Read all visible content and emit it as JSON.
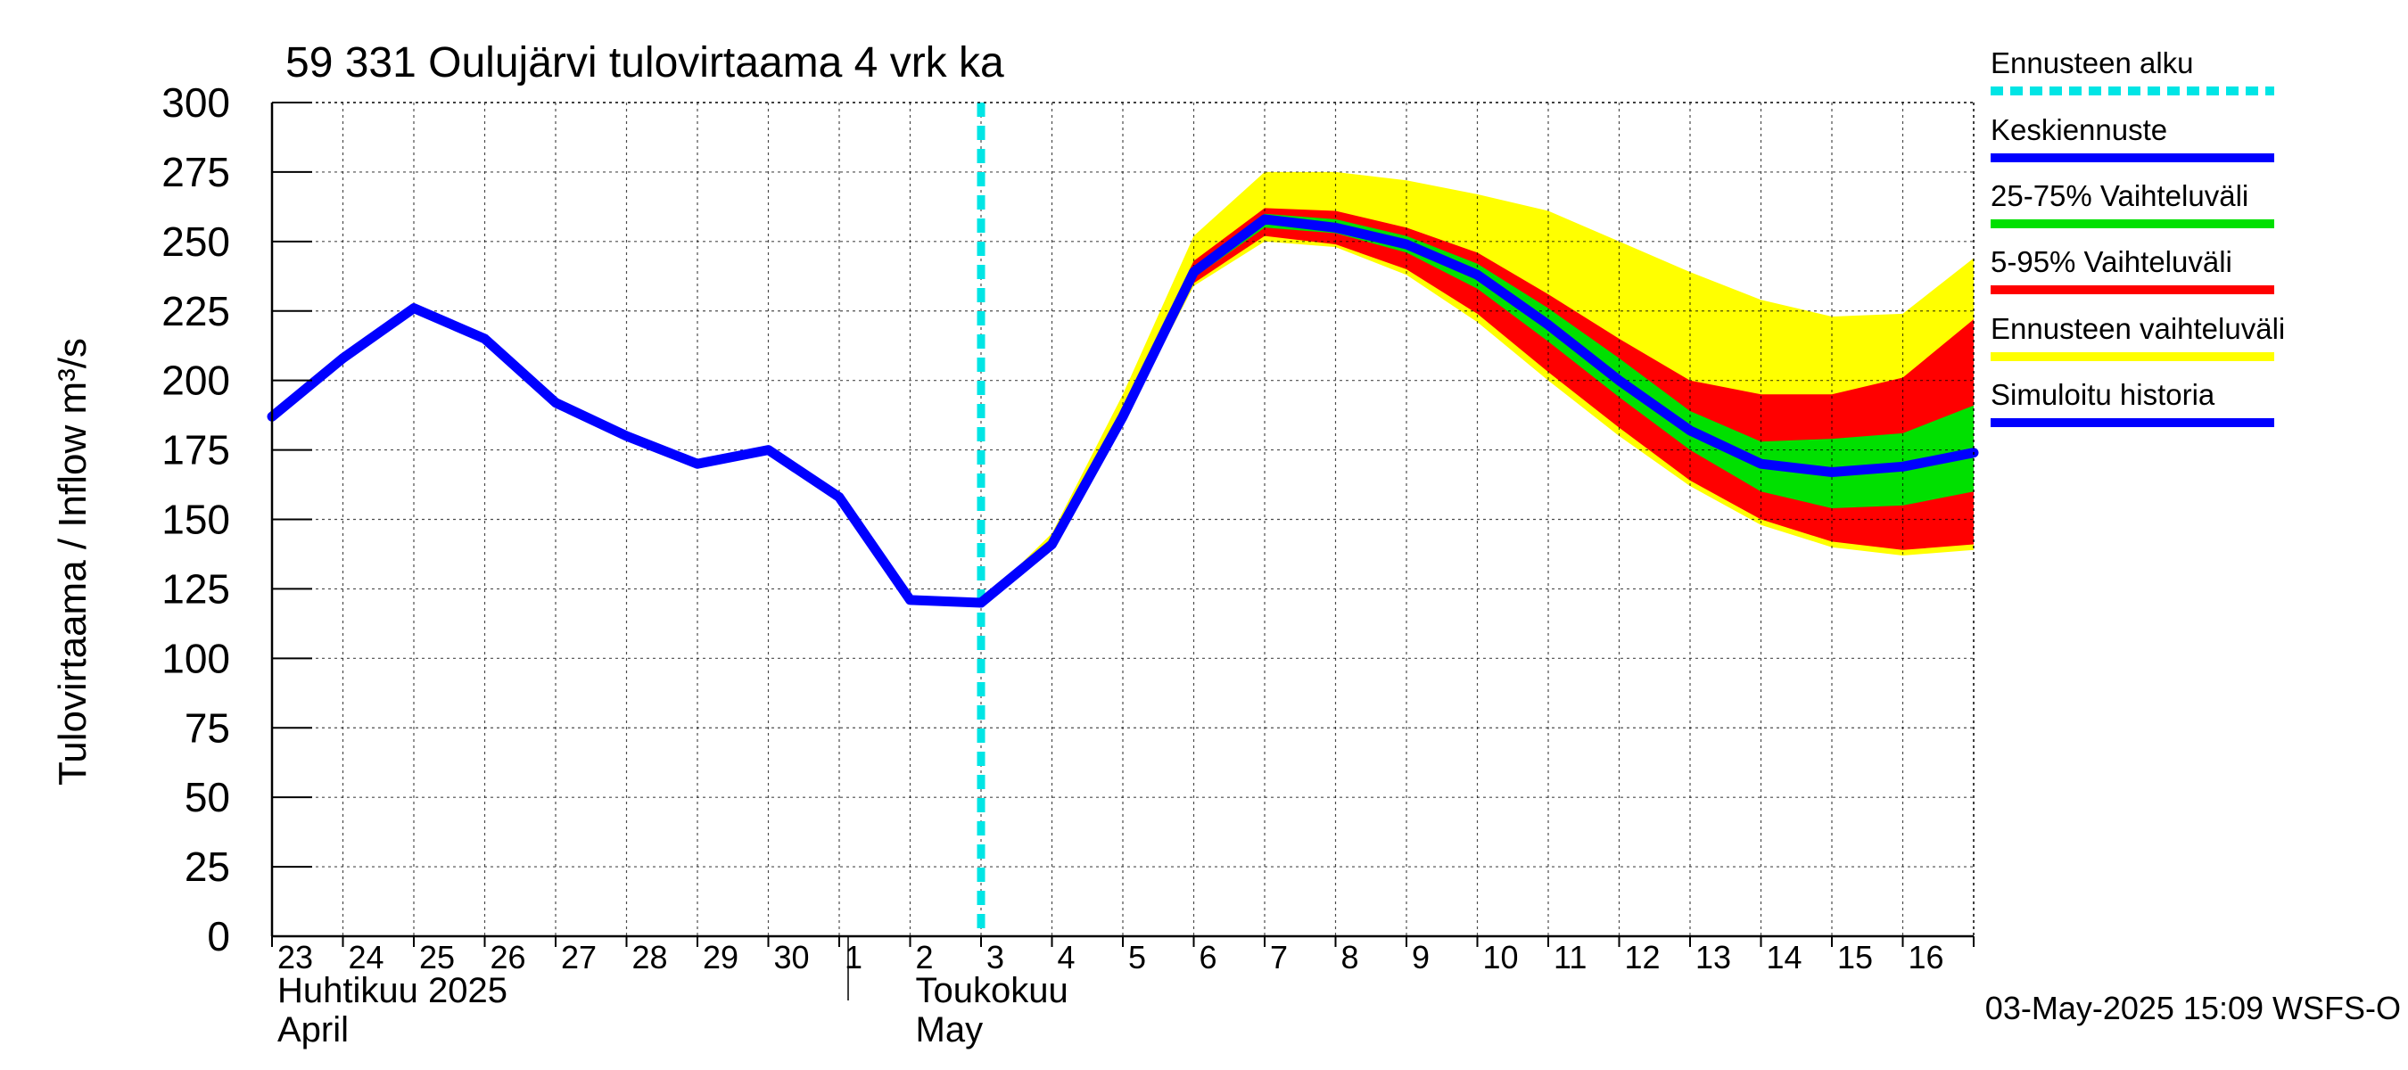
{
  "chart_data": {
    "type": "line",
    "title": "59 331 Oulujärvi tulovirtaama 4 vrk ka",
    "ylabel": "Tulovirtaama / Inflow    m³/s",
    "ylim": [
      0,
      300
    ],
    "yticks": [
      "0",
      "25",
      "50",
      "75",
      "100",
      "125",
      "150",
      "175",
      "200",
      "225",
      "250",
      "275",
      "300"
    ],
    "xlim": [
      0,
      24.0
    ],
    "x_tick_labels": [
      "23",
      "24",
      "25",
      "26",
      "27",
      "28",
      "29",
      "30",
      "1",
      "2",
      "3",
      "4",
      "5",
      "6",
      "7",
      "8",
      "9",
      "10",
      "11",
      "12",
      "13",
      "14",
      "15",
      "16"
    ],
    "month_labels": [
      {
        "line1": "Huhtikuu  2025",
        "line2": "April",
        "day_index": 0
      },
      {
        "line1": "Toukokuu",
        "line2": "May",
        "day_index": 9
      }
    ],
    "forecast_start_x": 10.0,
    "grid": true,
    "legend_position": "right",
    "legend": [
      {
        "label": "Ennusteen alku",
        "color": "#00e5e5",
        "style": "dashed"
      },
      {
        "label": "Keskiennuste",
        "color": "#0000ff",
        "style": "solid"
      },
      {
        "label": "25-75% Vaihteluväli",
        "color": "#00e000",
        "style": "solid"
      },
      {
        "label": "5-95% Vaihteluväli",
        "color": "#ff0000",
        "style": "solid"
      },
      {
        "label": "Ennusteen vaihteluväli",
        "color": "#ffff00",
        "style": "solid"
      },
      {
        "label": "Simuloitu historia",
        "color": "#0000ff",
        "style": "solid"
      }
    ],
    "colors": {
      "history": "#0000ff",
      "median": "#0000ff",
      "band_25_75": "#00e000",
      "band_5_95": "#ff0000",
      "band_full": "#ffff00",
      "forecast_start": "#00e5e5"
    },
    "history": {
      "x": [
        0,
        1,
        2,
        3,
        4,
        5,
        6,
        7,
        8,
        9,
        10
      ],
      "y": [
        187,
        208,
        226,
        215,
        192,
        180,
        170,
        175,
        158,
        121,
        120
      ]
    },
    "median": {
      "x": [
        10,
        11,
        12,
        13,
        14,
        15,
        16,
        17,
        18,
        19,
        20,
        21,
        22,
        23,
        24
      ],
      "y": [
        120,
        141,
        187,
        239,
        258,
        255,
        249,
        238,
        220,
        200,
        182,
        170,
        167,
        169,
        174
      ]
    },
    "band_full": {
      "x": [
        10,
        11,
        12,
        13,
        14,
        15,
        16,
        17,
        18,
        19,
        20,
        21,
        22,
        23,
        24
      ],
      "low": [
        120,
        140,
        185,
        234,
        250,
        248,
        238,
        221,
        200,
        180,
        162,
        148,
        140,
        137,
        139
      ],
      "high": [
        120,
        145,
        195,
        252,
        275,
        275,
        272,
        267,
        261,
        250,
        239,
        229,
        223,
        224,
        244
      ]
    },
    "band_5_95": {
      "x": [
        10,
        11,
        12,
        13,
        14,
        15,
        16,
        17,
        18,
        19,
        20,
        21,
        22,
        23,
        24
      ],
      "low": [
        120,
        140,
        186,
        235,
        252,
        249,
        240,
        224,
        203,
        183,
        164,
        150,
        142,
        139,
        141
      ],
      "high": [
        120,
        143,
        190,
        243,
        262,
        261,
        255,
        246,
        231,
        215,
        200,
        195,
        195,
        201,
        222
      ]
    },
    "band_25_75": {
      "x": [
        10,
        11,
        12,
        13,
        14,
        15,
        16,
        17,
        18,
        19,
        20,
        21,
        22,
        23,
        24
      ],
      "low": [
        120,
        141,
        187,
        237,
        255,
        253,
        246,
        233,
        214,
        194,
        175,
        160,
        154,
        155,
        160
      ],
      "high": [
        120,
        142,
        189,
        241,
        260,
        258,
        252,
        242,
        226,
        208,
        189,
        178,
        179,
        181,
        191
      ]
    }
  },
  "footer": {
    "timestamp": "03-May-2025 15:09 WSFS-O"
  }
}
